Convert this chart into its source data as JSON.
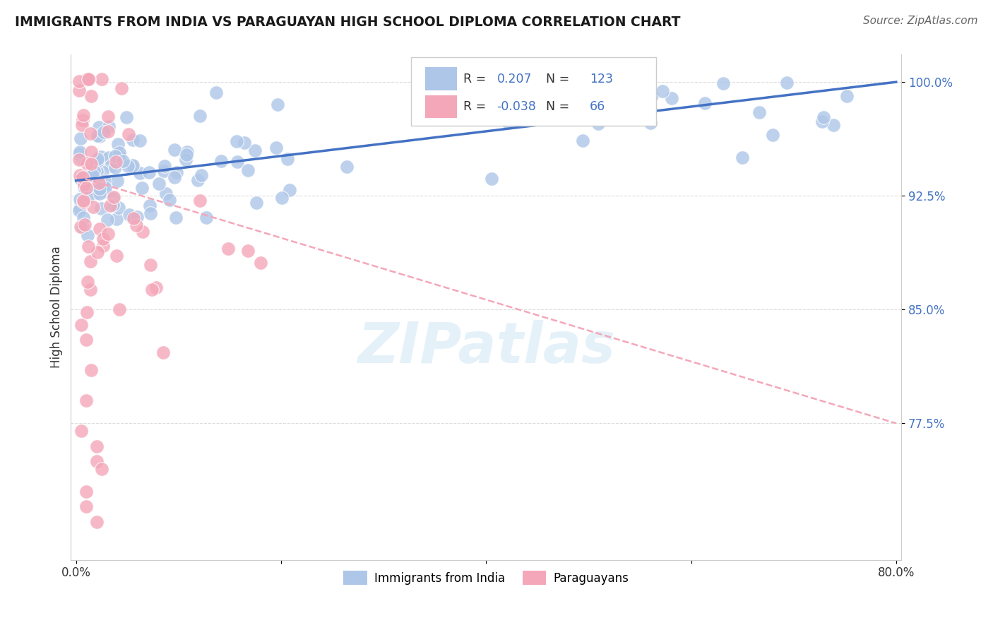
{
  "title": "IMMIGRANTS FROM INDIA VS PARAGUAYAN HIGH SCHOOL DIPLOMA CORRELATION CHART",
  "source": "Source: ZipAtlas.com",
  "ylabel": "High School Diploma",
  "legend_label1": "Immigrants from India",
  "legend_label2": "Paraguayans",
  "r1": 0.207,
  "n1": 123,
  "r2": -0.038,
  "n2": 66,
  "xlim": [
    -0.005,
    0.805
  ],
  "ylim": [
    0.685,
    1.018
  ],
  "yticks": [
    0.775,
    0.85,
    0.925,
    1.0
  ],
  "ytick_labels": [
    "77.5%",
    "85.0%",
    "92.5%",
    "100.0%"
  ],
  "xticks": [
    0.0,
    0.2,
    0.4,
    0.6,
    0.8
  ],
  "xtick_labels": [
    "0.0%",
    "",
    "",
    "",
    "80.0%"
  ],
  "color_india": "#aec6e8",
  "color_paraguay": "#f4a7b9",
  "trend_color_india": "#4472c4",
  "trend_color_paraguay": "#f4a7b9",
  "watermark": "ZIPatlas",
  "background_color": "#ffffff",
  "grid_color": "#dddddd",
  "india_trend_x0": 0.0,
  "india_trend_y0": 0.935,
  "india_trend_x1": 0.8,
  "india_trend_y1": 1.0,
  "para_trend_x0": 0.0,
  "para_trend_y0": 0.938,
  "para_trend_x1": 0.8,
  "para_trend_y1": 0.775
}
